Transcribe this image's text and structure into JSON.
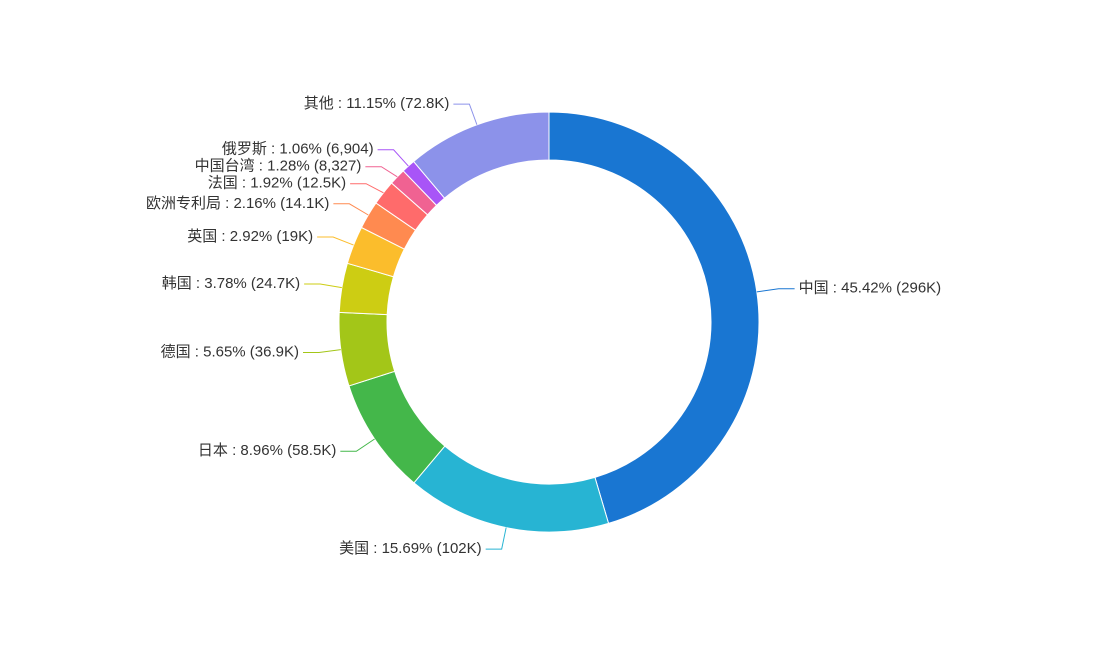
{
  "chart_data": {
    "type": "donut",
    "values": [
      45.42,
      15.69,
      8.96,
      5.65,
      3.78,
      2.92,
      2.16,
      1.92,
      1.28,
      1.06,
      11.15
    ],
    "value_labels": [
      "中国 : 45.42% (296K)",
      "美国 : 15.69% (102K)",
      "日本 : 8.96% (58.5K)",
      "德国 : 5.65% (36.9K)",
      "韩国 : 3.78% (24.7K)",
      "英国 : 2.92% (19K)",
      "欧洲专利局 : 2.16% (14.1K)",
      "法国 : 1.92% (12.5K)",
      "中国台湾 : 1.28% (8,327)",
      "俄罗斯 : 1.06% (6,904)",
      "其他 : 11.15% (72.8K)"
    ],
    "colors": [
      "#1976d2",
      "#27b4d3",
      "#44b74a",
      "#a3c618",
      "#cdcd13",
      "#fbbd2c",
      "#ff8a50",
      "#ff6b6b",
      "#f06292",
      "#a855f7",
      "#8c92ea"
    ]
  }
}
